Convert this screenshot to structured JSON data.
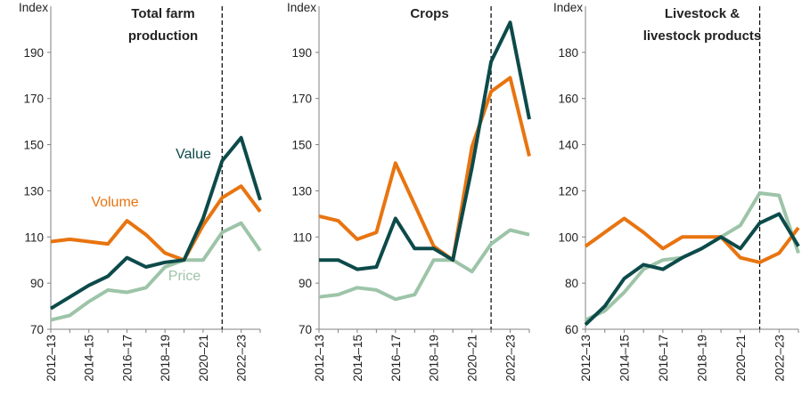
{
  "colors": {
    "Value": "#0d4a4a",
    "Volume": "#e87410",
    "Price": "#9dc4a8",
    "axis": "#808080",
    "forecast_line": "#000000"
  },
  "chart_data": [
    {
      "type": "line",
      "title_lines": [
        "Total farm",
        "production"
      ],
      "ylabel": "Index",
      "ylim": [
        70,
        210
      ],
      "yticks": [
        70,
        90,
        110,
        130,
        150,
        170,
        190
      ],
      "x": [
        "2012–13",
        "2013–14",
        "2014–15",
        "2015–16",
        "2016–17",
        "2017–18",
        "2018–19",
        "2019–20",
        "2020–21",
        "2021–22",
        "2022–23",
        "2023–24"
      ],
      "xtick_labels": [
        "2012–13",
        "",
        "2014–15",
        "",
        "2016–17",
        "",
        "2018–19",
        "",
        "2020–21",
        "",
        "2022–23",
        ""
      ],
      "forecast_after": "2021–22",
      "series": [
        {
          "name": "Value",
          "values": [
            79,
            84,
            89,
            93,
            101,
            97,
            99,
            100,
            118,
            143,
            153,
            126
          ]
        },
        {
          "name": "Volume",
          "values": [
            108,
            109,
            108,
            107,
            117,
            111,
            103,
            100,
            115,
            127,
            132,
            121
          ]
        },
        {
          "name": "Price",
          "values": [
            74,
            76,
            82,
            87,
            86,
            88,
            97,
            100,
            100,
            112,
            116,
            104
          ]
        }
      ]
    },
    {
      "type": "line",
      "title_lines": [
        "Crops"
      ],
      "ylabel": "Index",
      "ylim": [
        70,
        210
      ],
      "yticks": [
        70,
        90,
        110,
        130,
        150,
        170,
        190
      ],
      "x": [
        "2012–13",
        "2013–14",
        "2014–15",
        "2015–16",
        "2016–17",
        "2017–18",
        "2018–19",
        "2019–20",
        "2020–21",
        "2021–22",
        "2022–23",
        "2023–24"
      ],
      "xtick_labels": [
        "2012–13",
        "",
        "2014–15",
        "",
        "2016–17",
        "",
        "2018–19",
        "",
        "2020–21",
        "",
        "2022–23",
        ""
      ],
      "forecast_after": "2021–22",
      "series": [
        {
          "name": "Value",
          "values": [
            100,
            100,
            96,
            97,
            118,
            105,
            105,
            100,
            140,
            186,
            203,
            161
          ]
        },
        {
          "name": "Volume",
          "values": [
            119,
            117,
            109,
            112,
            142,
            124,
            106,
            100,
            149,
            173,
            179,
            145
          ]
        },
        {
          "name": "Price",
          "values": [
            84,
            85,
            88,
            87,
            83,
            85,
            100,
            100,
            95,
            107,
            113,
            111
          ]
        }
      ]
    },
    {
      "type": "line",
      "title_lines": [
        "Livestock &",
        "livestock products"
      ],
      "ylabel": "Index",
      "ylim": [
        60,
        200
      ],
      "yticks": [
        60,
        80,
        100,
        120,
        140,
        160,
        180
      ],
      "x": [
        "2012–13",
        "2013–14",
        "2014–15",
        "2015–16",
        "2016–17",
        "2017–18",
        "2018–19",
        "2019–20",
        "2020–21",
        "2021–22",
        "2022–23",
        "2023–24"
      ],
      "xtick_labels": [
        "2012–13",
        "",
        "2014–15",
        "",
        "2016–17",
        "",
        "2018–19",
        "",
        "2020–21",
        "",
        "2022–23",
        ""
      ],
      "forecast_after": "2021–22",
      "series": [
        {
          "name": "Value",
          "values": [
            62,
            70,
            82,
            88,
            86,
            91,
            95,
            100,
            95,
            106,
            110,
            96
          ]
        },
        {
          "name": "Volume",
          "values": [
            96,
            102,
            108,
            102,
            95,
            100,
            100,
            100,
            91,
            89,
            93,
            104
          ]
        },
        {
          "name": "Price",
          "values": [
            64,
            68,
            76,
            86,
            90,
            91,
            95,
            100,
            105,
            119,
            118,
            93
          ]
        }
      ]
    }
  ]
}
